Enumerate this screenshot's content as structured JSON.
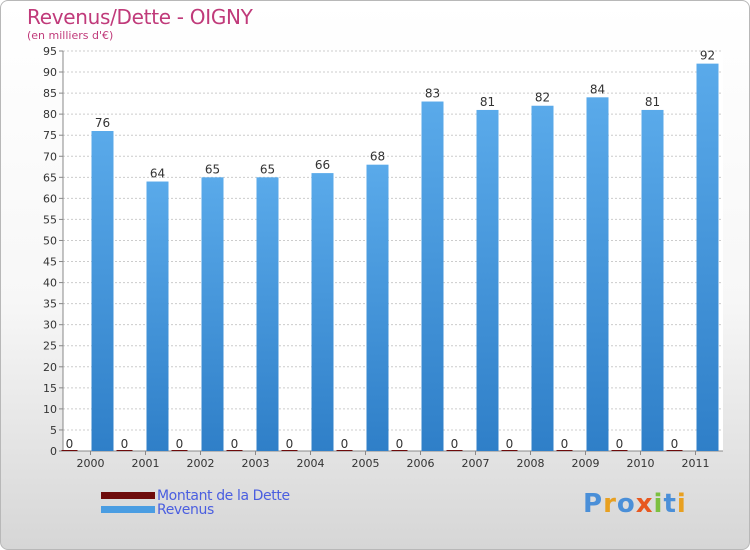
{
  "colors": {
    "title": "#c03a7a",
    "bar_revenus": "#4a9de2",
    "bar_dette": "#6e0b0b",
    "grid": "#cccccc",
    "legend_text": "#4a5ee0"
  },
  "chart_data": {
    "type": "bar",
    "title": "Revenus/Dette - OIGNY",
    "subtitle": "(en milliers d'€)",
    "xlabel": "",
    "ylabel": "",
    "ylim": [
      0,
      95
    ],
    "ytick_step": 5,
    "grid": true,
    "legend_position": "bottom-left",
    "categories": [
      "2000",
      "2001",
      "2002",
      "2003",
      "2004",
      "2005",
      "2006",
      "2007",
      "2008",
      "2009",
      "2010",
      "2011"
    ],
    "series": [
      {
        "name": "Montant de la Dette",
        "color": "#6e0b0b",
        "values": [
          0,
          0,
          0,
          0,
          0,
          0,
          0,
          0,
          0,
          0,
          0,
          0
        ]
      },
      {
        "name": "Revenus",
        "color": "#4a9de2",
        "values": [
          76,
          64,
          65,
          65,
          66,
          68,
          83,
          81,
          82,
          84,
          81,
          92
        ]
      }
    ]
  },
  "legend": {
    "items": [
      {
        "label": "Montant de la Dette",
        "color": "#6e0b0b"
      },
      {
        "label": "Revenus",
        "color": "#4a9de2"
      }
    ]
  },
  "logo": {
    "text": "Proxiti",
    "letter_colors": [
      "#4a8fd8",
      "#e8a020",
      "#4a8fd8",
      "#e85820",
      "#7cc040",
      "#4a8fd8",
      "#e8a020"
    ]
  }
}
